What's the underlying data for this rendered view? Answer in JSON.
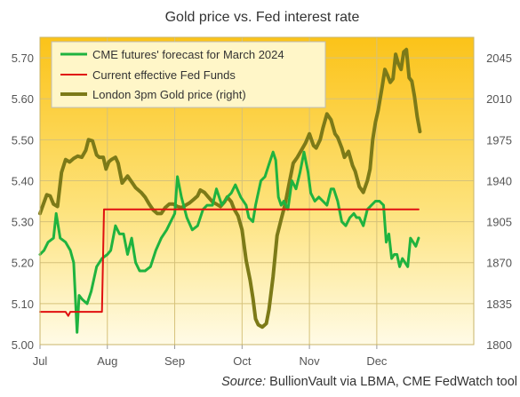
{
  "chart_data": {
    "type": "line",
    "title": "Gold price vs. Fed interest rate",
    "source_label": "Source:",
    "source_text": " BullionVault via LBMA, CME FedWatch tool",
    "categories": [
      "Jul",
      "Aug",
      "Sep",
      "Oct",
      "Nov",
      "Dec"
    ],
    "x_range": [
      0,
      6.44
    ],
    "y_left": {
      "ticks": [
        "5.00",
        "5.10",
        "5.20",
        "5.30",
        "5.40",
        "5.50",
        "5.60",
        "5.70"
      ],
      "lim": [
        5.0,
        5.75
      ]
    },
    "y_right": {
      "ticks": [
        "1800",
        "1835",
        "1870",
        "1905",
        "1940",
        "1975",
        "2010",
        "2045"
      ],
      "lim": [
        1800,
        2062.5
      ]
    },
    "grid": true,
    "legend_position": "top-left",
    "series": [
      {
        "name": "CME futures' forecast for March 2024",
        "axis": "left",
        "color": "#1fb33f",
        "points": [
          [
            0.0,
            5.22
          ],
          [
            0.06,
            5.23
          ],
          [
            0.12,
            5.25
          ],
          [
            0.2,
            5.26
          ],
          [
            0.24,
            5.32
          ],
          [
            0.3,
            5.26
          ],
          [
            0.38,
            5.25
          ],
          [
            0.45,
            5.23
          ],
          [
            0.5,
            5.2
          ],
          [
            0.55,
            5.03
          ],
          [
            0.58,
            5.12
          ],
          [
            0.63,
            5.11
          ],
          [
            0.7,
            5.1
          ],
          [
            0.76,
            5.13
          ],
          [
            0.84,
            5.19
          ],
          [
            0.92,
            5.21
          ],
          [
            1.0,
            5.22
          ],
          [
            1.05,
            5.23
          ],
          [
            1.12,
            5.29
          ],
          [
            1.18,
            5.27
          ],
          [
            1.24,
            5.27
          ],
          [
            1.3,
            5.22
          ],
          [
            1.36,
            5.26
          ],
          [
            1.42,
            5.2
          ],
          [
            1.48,
            5.18
          ],
          [
            1.56,
            5.18
          ],
          [
            1.64,
            5.19
          ],
          [
            1.72,
            5.23
          ],
          [
            1.8,
            5.26
          ],
          [
            1.88,
            5.28
          ],
          [
            1.94,
            5.3
          ],
          [
            2.0,
            5.32
          ],
          [
            2.04,
            5.41
          ],
          [
            2.1,
            5.36
          ],
          [
            2.18,
            5.31
          ],
          [
            2.26,
            5.28
          ],
          [
            2.34,
            5.29
          ],
          [
            2.42,
            5.33
          ],
          [
            2.48,
            5.34
          ],
          [
            2.56,
            5.34
          ],
          [
            2.62,
            5.38
          ],
          [
            2.7,
            5.34
          ],
          [
            2.78,
            5.36
          ],
          [
            2.84,
            5.37
          ],
          [
            2.9,
            5.39
          ],
          [
            2.98,
            5.36
          ],
          [
            3.06,
            5.34
          ],
          [
            3.1,
            5.31
          ],
          [
            3.16,
            5.3
          ],
          [
            3.2,
            5.34
          ],
          [
            3.28,
            5.4
          ],
          [
            3.34,
            5.41
          ],
          [
            3.4,
            5.44
          ],
          [
            3.46,
            5.47
          ],
          [
            3.5,
            5.45
          ],
          [
            3.54,
            5.36
          ],
          [
            3.58,
            5.34
          ],
          [
            3.62,
            5.35
          ],
          [
            3.68,
            5.33
          ],
          [
            3.74,
            5.4
          ],
          [
            3.8,
            5.38
          ],
          [
            3.86,
            5.42
          ],
          [
            3.92,
            5.47
          ],
          [
            3.98,
            5.42
          ],
          [
            4.02,
            5.37
          ],
          [
            4.08,
            5.35
          ],
          [
            4.14,
            5.36
          ],
          [
            4.2,
            5.35
          ],
          [
            4.26,
            5.34
          ],
          [
            4.32,
            5.38
          ],
          [
            4.36,
            5.38
          ],
          [
            4.42,
            5.35
          ],
          [
            4.48,
            5.3
          ],
          [
            4.54,
            5.29
          ],
          [
            4.6,
            5.31
          ],
          [
            4.66,
            5.32
          ],
          [
            4.7,
            5.31
          ],
          [
            4.74,
            5.31
          ],
          [
            4.8,
            5.29
          ],
          [
            4.86,
            5.33
          ],
          [
            4.92,
            5.34
          ],
          [
            4.98,
            5.35
          ],
          [
            5.04,
            5.35
          ],
          [
            5.1,
            5.34
          ],
          [
            5.14,
            5.25
          ],
          [
            5.18,
            5.27
          ],
          [
            5.22,
            5.21
          ],
          [
            5.26,
            5.22
          ],
          [
            5.3,
            5.22
          ],
          [
            5.34,
            5.19
          ],
          [
            5.38,
            5.21
          ],
          [
            5.42,
            5.2
          ],
          [
            5.46,
            5.19
          ],
          [
            5.5,
            5.26
          ],
          [
            5.54,
            5.25
          ],
          [
            5.58,
            5.24
          ],
          [
            5.62,
            5.26
          ]
        ]
      },
      {
        "name": "Current effective Fed Funds",
        "axis": "left",
        "color": "#e01010",
        "points": [
          [
            0.0,
            5.08
          ],
          [
            0.38,
            5.08
          ],
          [
            0.42,
            5.07
          ],
          [
            0.45,
            5.08
          ],
          [
            0.92,
            5.08
          ],
          [
            0.95,
            5.33
          ],
          [
            5.62,
            5.33
          ]
        ]
      },
      {
        "name": "London 3pm Gold price (right)",
        "axis": "right",
        "color": "#7c7a18",
        "points": [
          [
            0.0,
            1912
          ],
          [
            0.05,
            1920
          ],
          [
            0.1,
            1928
          ],
          [
            0.15,
            1927
          ],
          [
            0.2,
            1920
          ],
          [
            0.26,
            1918
          ],
          [
            0.32,
            1947
          ],
          [
            0.38,
            1958
          ],
          [
            0.44,
            1956
          ],
          [
            0.5,
            1959
          ],
          [
            0.56,
            1961
          ],
          [
            0.62,
            1960
          ],
          [
            0.68,
            1966
          ],
          [
            0.72,
            1975
          ],
          [
            0.78,
            1974
          ],
          [
            0.84,
            1962
          ],
          [
            0.88,
            1960
          ],
          [
            0.94,
            1960
          ],
          [
            0.98,
            1950
          ],
          [
            1.02,
            1956
          ],
          [
            1.06,
            1958
          ],
          [
            1.12,
            1960
          ],
          [
            1.16,
            1955
          ],
          [
            1.22,
            1938
          ],
          [
            1.3,
            1944
          ],
          [
            1.36,
            1939
          ],
          [
            1.42,
            1934
          ],
          [
            1.5,
            1930
          ],
          [
            1.56,
            1926
          ],
          [
            1.62,
            1920
          ],
          [
            1.68,
            1915
          ],
          [
            1.74,
            1912
          ],
          [
            1.8,
            1912
          ],
          [
            1.86,
            1917
          ],
          [
            1.92,
            1920
          ],
          [
            1.98,
            1920
          ],
          [
            2.04,
            1918
          ],
          [
            2.1,
            1917
          ],
          [
            2.16,
            1919
          ],
          [
            2.22,
            1921
          ],
          [
            2.28,
            1924
          ],
          [
            2.34,
            1927
          ],
          [
            2.38,
            1932
          ],
          [
            2.44,
            1930
          ],
          [
            2.5,
            1926
          ],
          [
            2.56,
            1922
          ],
          [
            2.62,
            1920
          ],
          [
            2.68,
            1918
          ],
          [
            2.74,
            1922
          ],
          [
            2.78,
            1926
          ],
          [
            2.84,
            1922
          ],
          [
            2.88,
            1916
          ],
          [
            2.94,
            1910
          ],
          [
            3.0,
            1898
          ],
          [
            3.06,
            1872
          ],
          [
            3.12,
            1855
          ],
          [
            3.16,
            1840
          ],
          [
            3.2,
            1822
          ],
          [
            3.24,
            1817
          ],
          [
            3.3,
            1815
          ],
          [
            3.36,
            1818
          ],
          [
            3.4,
            1830
          ],
          [
            3.46,
            1858
          ],
          [
            3.52,
            1893
          ],
          [
            3.58,
            1907
          ],
          [
            3.64,
            1920
          ],
          [
            3.7,
            1938
          ],
          [
            3.76,
            1955
          ],
          [
            3.82,
            1960
          ],
          [
            3.88,
            1966
          ],
          [
            3.94,
            1972
          ],
          [
            4.0,
            1980
          ],
          [
            4.06,
            1970
          ],
          [
            4.1,
            1968
          ],
          [
            4.16,
            1975
          ],
          [
            4.2,
            1985
          ],
          [
            4.26,
            1997
          ],
          [
            4.32,
            1992
          ],
          [
            4.38,
            1980
          ],
          [
            4.42,
            1977
          ],
          [
            4.48,
            1968
          ],
          [
            4.52,
            1960
          ],
          [
            4.58,
            1965
          ],
          [
            4.64,
            1953
          ],
          [
            4.68,
            1948
          ],
          [
            4.74,
            1935
          ],
          [
            4.8,
            1930
          ],
          [
            4.86,
            1940
          ],
          [
            4.9,
            1950
          ],
          [
            4.94,
            1975
          ],
          [
            4.98,
            1990
          ],
          [
            5.02,
            2000
          ],
          [
            5.08,
            2020
          ],
          [
            5.12,
            2035
          ],
          [
            5.16,
            2030
          ],
          [
            5.2,
            2024
          ],
          [
            5.24,
            2027
          ],
          [
            5.28,
            2048
          ],
          [
            5.32,
            2040
          ],
          [
            5.36,
            2035
          ],
          [
            5.4,
            2050
          ],
          [
            5.44,
            2052
          ],
          [
            5.48,
            2028
          ],
          [
            5.52,
            2025
          ],
          [
            5.56,
            2012
          ],
          [
            5.6,
            1995
          ],
          [
            5.64,
            1982
          ]
        ]
      }
    ]
  }
}
